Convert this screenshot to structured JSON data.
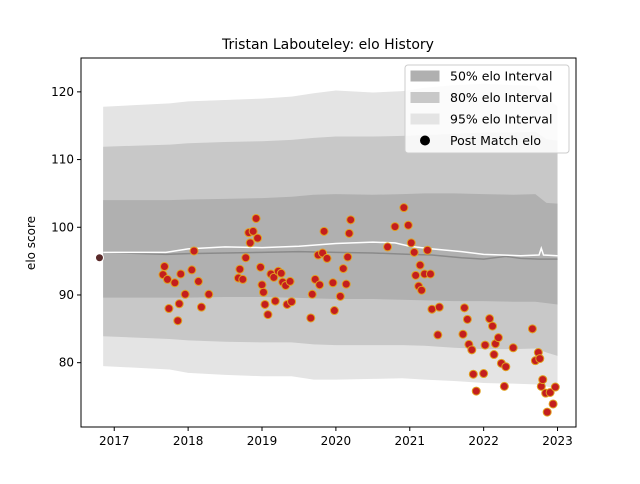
{
  "chart_data": {
    "type": "scatter",
    "title": "Tristan Labouteley: elo History",
    "xlabel": "",
    "ylabel": "elo score",
    "xlim": [
      2016.55,
      2023.25
    ],
    "ylim": [
      70.5,
      125
    ],
    "x_ticks": [
      2017,
      2018,
      2019,
      2020,
      2021,
      2022,
      2023
    ],
    "y_ticks": [
      80,
      90,
      100,
      110,
      120
    ],
    "grid": false,
    "legend_placement": "top-right",
    "legend": [
      {
        "label": "50% elo Interval",
        "kind": "band",
        "color": "#b0b0b0"
      },
      {
        "label": "80% elo Interval",
        "kind": "band",
        "color": "#c8c8c8"
      },
      {
        "label": "95% elo Interval",
        "kind": "band",
        "color": "#e4e4e4"
      },
      {
        "label": "Post Match elo",
        "kind": "marker",
        "color": "#000000"
      }
    ],
    "bands": {
      "x": [
        2016.85,
        2017.75,
        2018.0,
        2018.5,
        2019.0,
        2019.4,
        2019.7,
        2020.0,
        2020.5,
        2020.9,
        2021.2,
        2021.6,
        2022.0,
        2022.4,
        2022.7,
        2022.85,
        2023.0
      ],
      "b95_upper": [
        117.8,
        118.3,
        118.6,
        118.8,
        119.0,
        119.3,
        119.8,
        120.2,
        119.9,
        120.1,
        120.6,
        121.0,
        121.2,
        121.0,
        120.9,
        119.3,
        117.8
      ],
      "b95_lower": [
        79.5,
        79.0,
        78.5,
        78.2,
        78.0,
        78.0,
        77.5,
        77.5,
        77.6,
        77.7,
        77.5,
        77.3,
        77.0,
        76.9,
        76.8,
        76.5,
        76.0
      ],
      "b80_upper": [
        111.9,
        112.2,
        112.4,
        112.6,
        112.7,
        112.9,
        113.2,
        113.4,
        113.4,
        113.5,
        113.6,
        113.8,
        114.0,
        114.0,
        114.1,
        113.0,
        112.8
      ],
      "b80_lower": [
        83.9,
        83.5,
        83.3,
        83.1,
        83.0,
        83.0,
        82.7,
        82.6,
        82.6,
        82.6,
        82.5,
        82.2,
        82.0,
        82.0,
        82.1,
        81.5,
        81.0
      ],
      "b50_upper": [
        104.0,
        104.0,
        104.1,
        104.2,
        104.3,
        104.5,
        104.8,
        104.9,
        104.8,
        104.9,
        105.0,
        105.0,
        104.9,
        104.8,
        104.9,
        103.6,
        103.5
      ],
      "b50_lower": [
        89.6,
        89.6,
        89.6,
        89.7,
        89.7,
        89.6,
        89.5,
        89.4,
        89.4,
        89.3,
        89.2,
        89.1,
        89.1,
        89.0,
        89.0,
        88.8,
        88.6
      ]
    },
    "median_line": {
      "x": [
        2016.85,
        2017.7,
        2018.0,
        2018.5,
        2019.0,
        2019.5,
        2020.0,
        2020.5,
        2021.0,
        2021.3,
        2021.7,
        2022.0,
        2022.3,
        2022.5,
        2022.75,
        2023.0
      ],
      "y": [
        96.3,
        96.0,
        96.1,
        96.2,
        96.3,
        96.4,
        96.3,
        96.2,
        96.0,
        95.9,
        95.5,
        95.3,
        95.7,
        95.4,
        95.3,
        95.3
      ]
    },
    "mean_line": {
      "x": [
        2016.85,
        2017.7,
        2018.0,
        2018.5,
        2019.0,
        2019.5,
        2020.0,
        2020.5,
        2020.8,
        2021.0,
        2021.3,
        2021.7,
        2022.0,
        2022.5,
        2022.75,
        2022.78,
        2022.81,
        2023.0
      ],
      "y": [
        96.3,
        96.3,
        96.8,
        97.1,
        97.0,
        97.2,
        97.6,
        97.8,
        97.7,
        97.2,
        96.8,
        96.4,
        96.0,
        95.8,
        95.9,
        96.9,
        95.9,
        95.8
      ]
    },
    "first_point": {
      "x": 2016.8,
      "y": 95.5
    },
    "points": [
      {
        "x": 2017.68,
        "y": 94.2
      },
      {
        "x": 2017.66,
        "y": 93.0
      },
      {
        "x": 2017.72,
        "y": 92.3
      },
      {
        "x": 2017.74,
        "y": 88.0
      },
      {
        "x": 2017.82,
        "y": 91.8
      },
      {
        "x": 2017.86,
        "y": 86.2
      },
      {
        "x": 2017.88,
        "y": 88.7
      },
      {
        "x": 2017.9,
        "y": 93.1
      },
      {
        "x": 2017.96,
        "y": 90.1
      },
      {
        "x": 2018.05,
        "y": 93.7
      },
      {
        "x": 2018.08,
        "y": 96.5
      },
      {
        "x": 2018.14,
        "y": 92.0
      },
      {
        "x": 2018.18,
        "y": 88.2
      },
      {
        "x": 2018.28,
        "y": 90.1
      },
      {
        "x": 2018.68,
        "y": 92.5
      },
      {
        "x": 2018.7,
        "y": 93.8
      },
      {
        "x": 2018.74,
        "y": 92.3
      },
      {
        "x": 2018.78,
        "y": 95.5
      },
      {
        "x": 2018.82,
        "y": 99.2
      },
      {
        "x": 2018.84,
        "y": 97.7
      },
      {
        "x": 2018.88,
        "y": 99.4
      },
      {
        "x": 2018.92,
        "y": 101.3
      },
      {
        "x": 2018.94,
        "y": 98.4
      },
      {
        "x": 2018.98,
        "y": 94.1
      },
      {
        "x": 2019.0,
        "y": 91.5
      },
      {
        "x": 2019.02,
        "y": 90.4
      },
      {
        "x": 2019.04,
        "y": 88.6
      },
      {
        "x": 2019.08,
        "y": 87.1
      },
      {
        "x": 2019.12,
        "y": 93.1
      },
      {
        "x": 2019.16,
        "y": 92.6
      },
      {
        "x": 2019.18,
        "y": 89.1
      },
      {
        "x": 2019.22,
        "y": 93.5
      },
      {
        "x": 2019.26,
        "y": 93.2
      },
      {
        "x": 2019.28,
        "y": 91.9
      },
      {
        "x": 2019.32,
        "y": 91.4
      },
      {
        "x": 2019.34,
        "y": 88.6
      },
      {
        "x": 2019.38,
        "y": 92.0
      },
      {
        "x": 2019.4,
        "y": 89.0
      },
      {
        "x": 2019.66,
        "y": 86.6
      },
      {
        "x": 2019.68,
        "y": 90.1
      },
      {
        "x": 2019.72,
        "y": 92.3
      },
      {
        "x": 2019.76,
        "y": 95.9
      },
      {
        "x": 2019.78,
        "y": 91.5
      },
      {
        "x": 2019.82,
        "y": 96.2
      },
      {
        "x": 2019.84,
        "y": 99.4
      },
      {
        "x": 2019.88,
        "y": 95.4
      },
      {
        "x": 2019.96,
        "y": 91.8
      },
      {
        "x": 2019.98,
        "y": 87.7
      },
      {
        "x": 2020.06,
        "y": 89.8
      },
      {
        "x": 2020.1,
        "y": 93.9
      },
      {
        "x": 2020.14,
        "y": 91.6
      },
      {
        "x": 2020.16,
        "y": 95.6
      },
      {
        "x": 2020.18,
        "y": 99.1
      },
      {
        "x": 2020.2,
        "y": 101.1
      },
      {
        "x": 2020.7,
        "y": 97.1
      },
      {
        "x": 2020.8,
        "y": 100.1
      },
      {
        "x": 2020.92,
        "y": 102.9
      },
      {
        "x": 2020.98,
        "y": 100.3
      },
      {
        "x": 2021.02,
        "y": 97.7
      },
      {
        "x": 2021.06,
        "y": 96.3
      },
      {
        "x": 2021.08,
        "y": 92.9
      },
      {
        "x": 2021.12,
        "y": 91.3
      },
      {
        "x": 2021.14,
        "y": 94.4
      },
      {
        "x": 2021.16,
        "y": 90.7
      },
      {
        "x": 2021.2,
        "y": 93.1
      },
      {
        "x": 2021.24,
        "y": 96.6
      },
      {
        "x": 2021.28,
        "y": 93.1
      },
      {
        "x": 2021.3,
        "y": 87.9
      },
      {
        "x": 2021.38,
        "y": 84.1
      },
      {
        "x": 2021.4,
        "y": 88.2
      },
      {
        "x": 2021.72,
        "y": 84.2
      },
      {
        "x": 2021.74,
        "y": 88.1
      },
      {
        "x": 2021.78,
        "y": 86.4
      },
      {
        "x": 2021.8,
        "y": 82.7
      },
      {
        "x": 2021.84,
        "y": 81.9
      },
      {
        "x": 2021.86,
        "y": 78.3
      },
      {
        "x": 2021.9,
        "y": 75.8
      },
      {
        "x": 2022.0,
        "y": 78.4
      },
      {
        "x": 2022.02,
        "y": 82.6
      },
      {
        "x": 2022.08,
        "y": 86.5
      },
      {
        "x": 2022.12,
        "y": 85.4
      },
      {
        "x": 2022.14,
        "y": 81.2
      },
      {
        "x": 2022.16,
        "y": 82.8
      },
      {
        "x": 2022.2,
        "y": 83.7
      },
      {
        "x": 2022.24,
        "y": 79.9
      },
      {
        "x": 2022.28,
        "y": 76.5
      },
      {
        "x": 2022.3,
        "y": 79.4
      },
      {
        "x": 2022.4,
        "y": 82.2
      },
      {
        "x": 2022.66,
        "y": 85.0
      },
      {
        "x": 2022.7,
        "y": 80.3
      },
      {
        "x": 2022.74,
        "y": 81.5
      },
      {
        "x": 2022.76,
        "y": 80.6
      },
      {
        "x": 2022.78,
        "y": 76.5
      },
      {
        "x": 2022.8,
        "y": 77.5
      },
      {
        "x": 2022.84,
        "y": 75.5
      },
      {
        "x": 2022.86,
        "y": 72.7
      },
      {
        "x": 2022.9,
        "y": 75.6
      },
      {
        "x": 2022.94,
        "y": 73.9
      },
      {
        "x": 2022.97,
        "y": 76.4
      }
    ],
    "colors": {
      "band50": "#b0b0b0",
      "band80": "#c8c8c8",
      "band95": "#e4e4e4",
      "median_line": "#8a8a8a",
      "mean_line": "#ffffff",
      "marker_face": "#c41e1e",
      "marker_edge": "#e0a020",
      "first_marker_face": "#5a2a2a",
      "first_marker_edge": "#ffffff"
    }
  }
}
